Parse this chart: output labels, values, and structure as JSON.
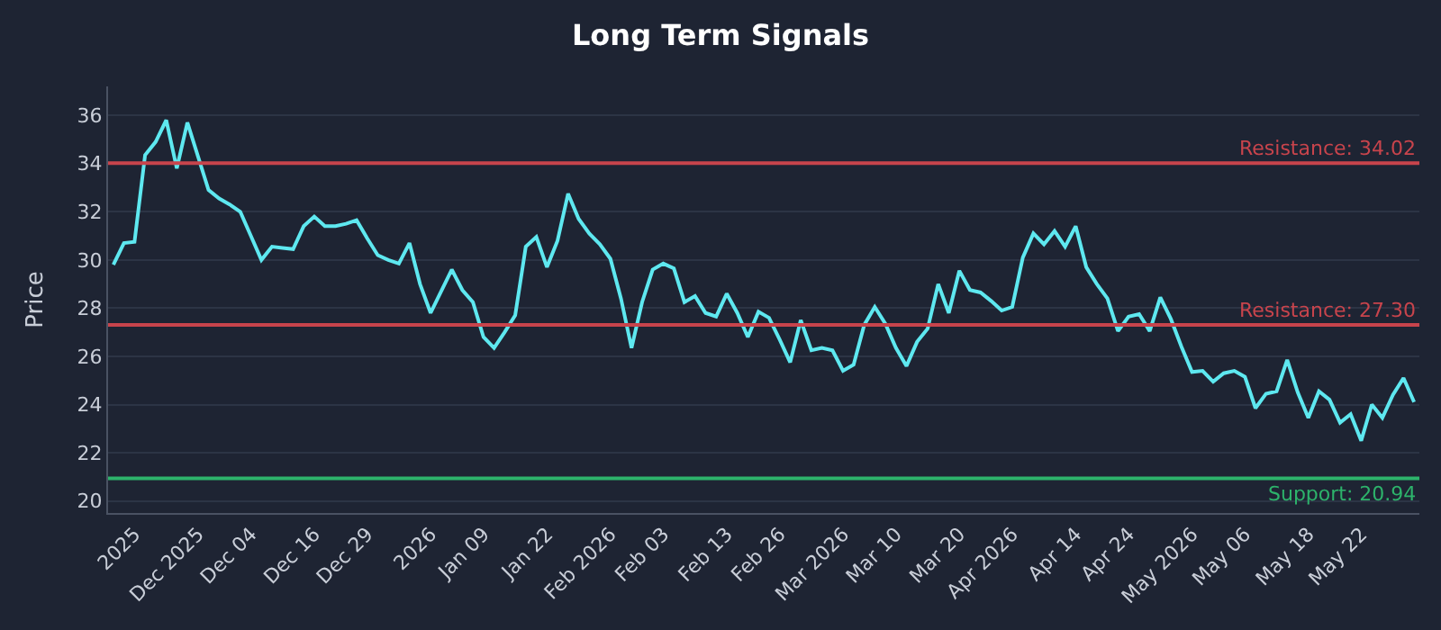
{
  "chart_data": {
    "type": "line",
    "title": "Long Term Signals",
    "ylabel": "Price",
    "categories": [
      null,
      null,
      "2025",
      null,
      null,
      null,
      null,
      null,
      "Dec 2025",
      null,
      null,
      null,
      null,
      "Dec 04",
      null,
      null,
      null,
      null,
      null,
      "Dec 16",
      null,
      null,
      null,
      null,
      "Dec 29",
      null,
      null,
      null,
      null,
      null,
      "2026",
      null,
      null,
      null,
      null,
      "Jan 09",
      null,
      null,
      null,
      null,
      null,
      "Jan 22",
      null,
      null,
      null,
      null,
      null,
      "Feb 2026",
      null,
      null,
      null,
      null,
      "Feb 03",
      null,
      null,
      null,
      null,
      null,
      "Feb 13",
      null,
      null,
      null,
      null,
      "Feb 26",
      null,
      null,
      null,
      null,
      null,
      "Mar 2026",
      null,
      null,
      null,
      null,
      "Mar 10",
      null,
      null,
      null,
      null,
      null,
      "Mar 20",
      null,
      null,
      null,
      null,
      "Apr 2026",
      null,
      null,
      null,
      null,
      null,
      "Apr 14",
      null,
      null,
      null,
      null,
      "Apr 24",
      null,
      null,
      null,
      null,
      null,
      "May 2026",
      null,
      null,
      null,
      null,
      "May 06",
      null,
      null,
      null,
      null,
      null,
      "May 18",
      null,
      null,
      null,
      null,
      "May 22",
      null,
      null,
      null,
      null,
      null
    ],
    "series": [
      {
        "color": "#5ee8f0",
        "values": [
          29.8,
          30.7,
          30.75,
          34.35,
          34.9,
          35.8,
          33.8,
          35.7,
          34.3,
          32.9,
          32.55,
          32.3,
          32.0,
          31.0,
          30.0,
          30.55,
          30.5,
          30.45,
          31.4,
          31.8,
          31.4,
          31.4,
          31.5,
          31.65,
          30.9,
          30.2,
          30.0,
          29.85,
          30.7,
          29.0,
          27.8,
          28.7,
          29.6,
          28.75,
          28.25,
          26.8,
          26.35,
          27.0,
          27.7,
          30.55,
          30.95,
          29.7,
          30.8,
          32.75,
          31.7,
          31.1,
          30.65,
          30.05,
          28.4,
          26.35,
          28.25,
          29.6,
          29.85,
          29.65,
          28.25,
          28.5,
          27.8,
          27.65,
          28.6,
          27.8,
          26.8,
          27.85,
          27.6,
          26.7,
          25.75,
          27.5,
          26.25,
          26.35,
          26.25,
          25.4,
          25.65,
          27.3,
          28.05,
          27.35,
          26.35,
          25.6,
          26.6,
          27.15,
          29.0,
          27.8,
          29.55,
          28.75,
          28.65,
          28.3,
          27.9,
          28.05,
          30.1,
          31.1,
          30.65,
          31.2,
          30.55,
          31.4,
          29.7,
          29.0,
          28.4,
          27.05,
          27.65,
          27.75,
          27.05,
          28.45,
          27.55,
          26.4,
          25.35,
          25.4,
          24.95,
          25.3,
          25.4,
          25.15,
          23.85,
          24.45,
          24.55,
          25.85,
          24.5,
          23.45,
          24.55,
          24.2,
          23.25,
          23.6,
          22.5,
          24.0,
          23.45,
          24.4,
          25.1,
          24.1
        ]
      }
    ],
    "ylim": [
      19.5,
      37.2
    ],
    "yticks": [
      20,
      22,
      24,
      26,
      28,
      30,
      32,
      34,
      36
    ],
    "grid": "y",
    "marker": "none",
    "line_style": "solid",
    "ref_lines": [
      {
        "axis": "y",
        "value": 34.02,
        "label": "Resistance: 34.02",
        "color": "#c8444c"
      },
      {
        "axis": "y",
        "value": 27.3,
        "label": "Resistance: 27.30",
        "color": "#c8444c"
      },
      {
        "axis": "y",
        "value": 20.94,
        "label": "Support: 20.94",
        "color": "#2db36b"
      }
    ]
  }
}
